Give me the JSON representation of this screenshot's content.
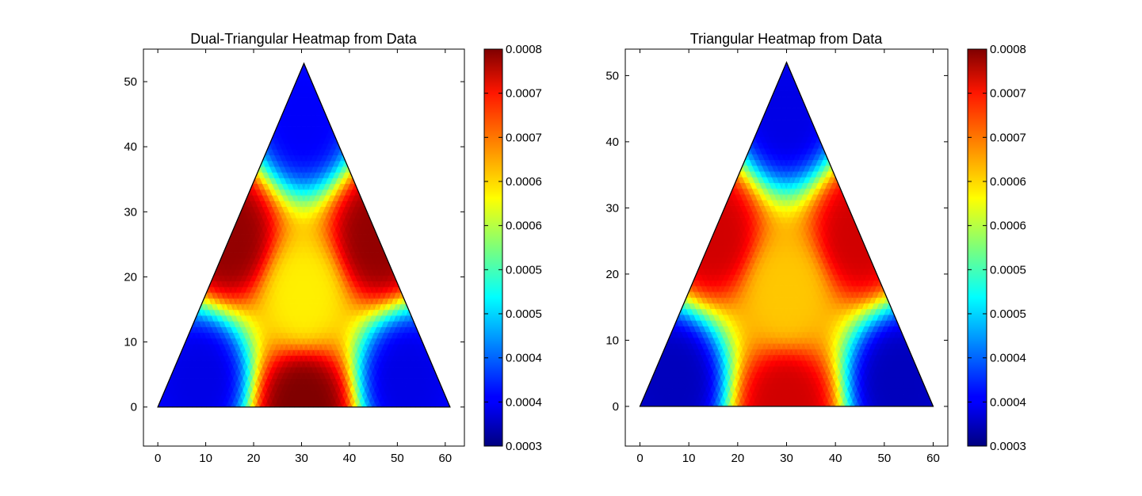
{
  "chart_data": [
    {
      "type": "heatmap",
      "title": "Dual-Triangular Heatmap from Data",
      "xlabel": "",
      "ylabel": "",
      "xlim": [
        -3,
        64
      ],
      "ylim": [
        -6,
        55
      ],
      "xticks": [
        0,
        10,
        20,
        30,
        40,
        50,
        60
      ],
      "yticks": [
        0,
        10,
        20,
        30,
        40,
        50
      ],
      "triangle_vertices": [
        [
          0,
          0
        ],
        [
          61,
          0
        ],
        [
          30.5,
          52.8
        ]
      ],
      "grid": false,
      "colormap": "jet",
      "colorbar": {
        "min": 0.0003,
        "max": 0.0008,
        "tick_labels": [
          "0.0008",
          "0.0007",
          "0.0007",
          "0.0006",
          "0.0006",
          "0.0005",
          "0.0005",
          "0.0004",
          "0.0004",
          "0.0003"
        ]
      },
      "regions": [
        {
          "label": "top corner",
          "location": [
            30.5,
            44
          ],
          "value": 0.00036
        },
        {
          "label": "bottom-left corner",
          "location": [
            9,
            4.5
          ],
          "value": 0.00035
        },
        {
          "label": "bottom-right corner",
          "location": [
            52,
            4.5
          ],
          "value": 0.00035
        },
        {
          "label": "center",
          "location": [
            30.5,
            17
          ],
          "value": 0.00062
        },
        {
          "label": "bottom edge center",
          "location": [
            30.5,
            0.3
          ],
          "value": 0.0008
        },
        {
          "label": "left edge middle",
          "location": [
            15,
            26
          ],
          "value": 0.00079
        },
        {
          "label": "right edge middle",
          "location": [
            46,
            26
          ],
          "value": 0.00079
        }
      ]
    },
    {
      "type": "heatmap",
      "title": "Triangular Heatmap from Data",
      "xlabel": "",
      "ylabel": "",
      "xlim": [
        -3,
        63
      ],
      "ylim": [
        -6,
        54
      ],
      "xticks": [
        0,
        10,
        20,
        30,
        40,
        50,
        60
      ],
      "yticks": [
        0,
        10,
        20,
        30,
        40,
        50
      ],
      "triangle_vertices": [
        [
          0,
          0
        ],
        [
          60,
          0
        ],
        [
          30,
          52
        ]
      ],
      "grid": false,
      "colormap": "jet",
      "colorbar": {
        "min": 0.0003,
        "max": 0.0008,
        "tick_labels": [
          "0.0008",
          "0.0007",
          "0.0007",
          "0.0006",
          "0.0006",
          "0.0005",
          "0.0005",
          "0.0004",
          "0.0004",
          "0.0003"
        ]
      },
      "regions": [
        {
          "label": "top corner",
          "location": [
            30,
            44
          ],
          "value": 0.00035
        },
        {
          "label": "bottom-left corner",
          "location": [
            7,
            4
          ],
          "value": 0.00033
        },
        {
          "label": "bottom-right corner",
          "location": [
            53,
            4
          ],
          "value": 0.00033
        },
        {
          "label": "center",
          "location": [
            30,
            17
          ],
          "value": 0.00064
        },
        {
          "label": "bottom edge center",
          "location": [
            30,
            0.3
          ],
          "value": 0.00076
        },
        {
          "label": "left edge middle",
          "location": [
            15,
            26
          ],
          "value": 0.00076
        },
        {
          "label": "right edge middle",
          "location": [
            45,
            26
          ],
          "value": 0.00076
        }
      ]
    }
  ]
}
